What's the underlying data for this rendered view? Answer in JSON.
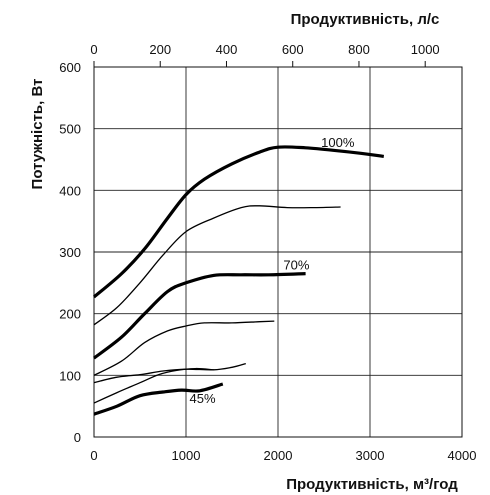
{
  "chart_data": {
    "type": "line",
    "x_bottom": {
      "label": "Продуктивність, м³/год",
      "range": [
        0,
        4000
      ],
      "ticks": [
        0,
        1000,
        2000,
        3000,
        4000
      ]
    },
    "x_top": {
      "label": "Продуктивність, л/с",
      "range": [
        0,
        1111.1
      ],
      "ticks": [
        0,
        200,
        400,
        600,
        800,
        1000
      ]
    },
    "y": {
      "label": "Потужність, Вт",
      "range": [
        0,
        600
      ],
      "ticks": [
        0,
        100,
        200,
        300,
        400,
        500,
        600
      ]
    },
    "grid": true,
    "series": [
      {
        "name": "100%",
        "bold": true,
        "points": [
          [
            0,
            227
          ],
          [
            300,
            265
          ],
          [
            550,
            305
          ],
          [
            800,
            355
          ],
          [
            1000,
            393
          ],
          [
            1200,
            418
          ],
          [
            1500,
            443
          ],
          [
            1800,
            462
          ],
          [
            2000,
            470
          ],
          [
            2300,
            469
          ],
          [
            2600,
            465
          ],
          [
            2900,
            460
          ],
          [
            3150,
            455
          ]
        ]
      },
      {
        "name": "",
        "bold": false,
        "points": [
          [
            0,
            182
          ],
          [
            250,
            210
          ],
          [
            500,
            250
          ],
          [
            750,
            295
          ],
          [
            1000,
            333
          ],
          [
            1300,
            355
          ],
          [
            1600,
            372
          ],
          [
            1800,
            375
          ],
          [
            2100,
            372
          ],
          [
            2400,
            372
          ],
          [
            2680,
            373
          ]
        ]
      },
      {
        "name": "70%",
        "bold": true,
        "points": [
          [
            0,
            128
          ],
          [
            300,
            162
          ],
          [
            550,
            200
          ],
          [
            800,
            236
          ],
          [
            1000,
            250
          ],
          [
            1300,
            262
          ],
          [
            1600,
            263
          ],
          [
            1900,
            263
          ],
          [
            2300,
            265
          ]
        ]
      },
      {
        "name": "",
        "bold": false,
        "points": [
          [
            0,
            100
          ],
          [
            300,
            123
          ],
          [
            550,
            153
          ],
          [
            800,
            172
          ],
          [
            1000,
            180
          ],
          [
            1200,
            185
          ],
          [
            1500,
            185
          ],
          [
            1800,
            187
          ],
          [
            1960,
            188
          ]
        ]
      },
      {
        "name": "",
        "bold": false,
        "points": [
          [
            0,
            88
          ],
          [
            250,
            97
          ],
          [
            500,
            101
          ],
          [
            750,
            107
          ],
          [
            1000,
            110
          ],
          [
            1300,
            109
          ],
          [
            1500,
            113
          ],
          [
            1650,
            119
          ]
        ]
      },
      {
        "name": "",
        "bold": false,
        "points": [
          [
            0,
            55
          ],
          [
            250,
            72
          ],
          [
            500,
            88
          ],
          [
            700,
            101
          ],
          [
            900,
            108
          ],
          [
            1100,
            111
          ],
          [
            1300,
            109
          ]
        ]
      },
      {
        "name": "45%",
        "bold": true,
        "points": [
          [
            0,
            37
          ],
          [
            250,
            50
          ],
          [
            500,
            67
          ],
          [
            750,
            73
          ],
          [
            950,
            76
          ],
          [
            1150,
            75
          ],
          [
            1400,
            86
          ]
        ]
      }
    ],
    "labels": [
      {
        "text": "100%",
        "x": 2650,
        "y": 470
      },
      {
        "text": "70%",
        "x": 2200,
        "y": 272
      },
      {
        "text": "45%",
        "x": 1180,
        "y": 55
      }
    ]
  }
}
